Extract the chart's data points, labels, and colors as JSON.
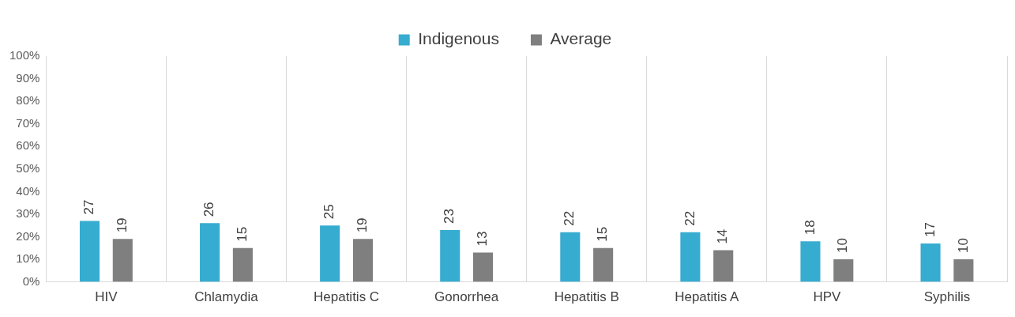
{
  "chart_data": {
    "type": "bar",
    "categories": [
      "HIV",
      "Chlamydia",
      "Hepatitis C",
      "Gonorrhea",
      "Hepatitis B",
      "Hepatitis A",
      "HPV",
      "Syphilis"
    ],
    "series": [
      {
        "name": "Indigenous",
        "color": "#36acd0",
        "values": [
          27,
          26,
          25,
          23,
          22,
          22,
          18,
          17
        ]
      },
      {
        "name": "Average",
        "color": "#7f7f7f",
        "values": [
          19,
          15,
          19,
          13,
          15,
          14,
          10,
          10
        ]
      }
    ],
    "ylim": [
      0,
      100
    ],
    "yticks": [
      {
        "value": 0,
        "label": "0%"
      },
      {
        "value": 10,
        "label": "10%"
      },
      {
        "value": 20,
        "label": "20%"
      },
      {
        "value": 30,
        "label": "30%"
      },
      {
        "value": 40,
        "label": "40%"
      },
      {
        "value": 50,
        "label": "50%"
      },
      {
        "value": 60,
        "label": "60%"
      },
      {
        "value": 70,
        "label": "70%"
      },
      {
        "value": 80,
        "label": "80%"
      },
      {
        "value": 90,
        "label": "90%"
      },
      {
        "value": 100,
        "label": "100%"
      }
    ],
    "grid": "x",
    "legend": "top",
    "data_labels": true
  }
}
